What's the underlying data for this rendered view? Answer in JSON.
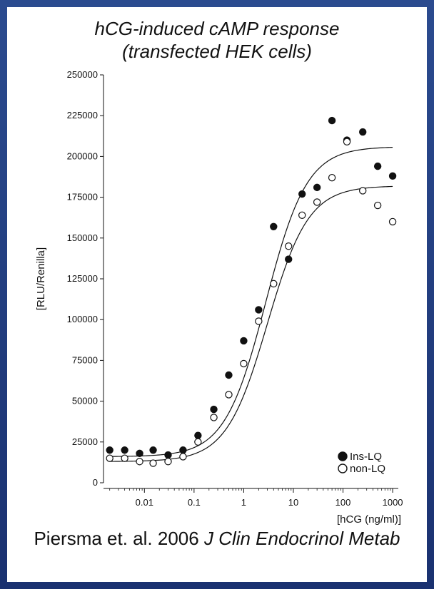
{
  "header": {
    "title_line1": "hCG-induced cAMP response",
    "title_line2": "(transfected HEK cells)"
  },
  "citation": {
    "authors_year": "Piersma et. al. 2006",
    "journal": "J Clin Endocrinol Metab"
  },
  "colors": {
    "frame": "#1f3a7a",
    "panel": "#ffffff",
    "ink": "#111111"
  },
  "chart_data": {
    "type": "scatter",
    "title": "hCG-induced cAMP response (transfected HEK cells)",
    "xlabel": "[hCG (ng/ml)]",
    "ylabel": "[RLU/Renilla]",
    "xscale": "log",
    "xlim": [
      0.0015,
      1300
    ],
    "ylim": [
      0,
      250000
    ],
    "x_ticks": [
      0.01,
      0.1,
      1,
      10,
      100,
      1000
    ],
    "x_tick_labels": [
      "0.01",
      "0.1",
      "1",
      "10",
      "100",
      "1000"
    ],
    "y_ticks": [
      0,
      25000,
      50000,
      75000,
      100000,
      125000,
      150000,
      175000,
      200000,
      225000,
      250000
    ],
    "y_tick_labels": [
      "0",
      "25000",
      "50000",
      "75000",
      "100000",
      "125000",
      "150000",
      "175000",
      "200000",
      "225000",
      "250000"
    ],
    "legend_position": "bottom-right",
    "series": [
      {
        "name": "Ins-LQ",
        "marker": "filled-circle",
        "x": [
          0.002,
          0.004,
          0.008,
          0.015,
          0.03,
          0.06,
          0.12,
          0.25,
          0.5,
          1,
          2,
          4,
          8,
          15,
          30,
          60,
          120,
          250,
          500,
          1000
        ],
        "y": [
          20000,
          20000,
          18000,
          20000,
          17000,
          20000,
          29000,
          45000,
          66000,
          87000,
          106000,
          157000,
          137000,
          177000,
          181000,
          222000,
          210000,
          215000,
          194000,
          188000
        ],
        "fit": {
          "bottom": 16000,
          "top": 206000,
          "ec50": 2.8,
          "hill": 1.05
        }
      },
      {
        "name": "non-LQ",
        "marker": "open-circle",
        "x": [
          0.002,
          0.004,
          0.008,
          0.015,
          0.03,
          0.06,
          0.12,
          0.25,
          0.5,
          1,
          2,
          4,
          8,
          15,
          30,
          60,
          120,
          250,
          500,
          1000
        ],
        "y": [
          15000,
          15000,
          13000,
          12000,
          13000,
          16000,
          25000,
          40000,
          54000,
          73000,
          99000,
          122000,
          145000,
          164000,
          172000,
          187000,
          209000,
          179000,
          170000,
          160000
        ],
        "fit": {
          "bottom": 13000,
          "top": 182000,
          "ec50": 3.0,
          "hill": 1.05
        }
      }
    ]
  }
}
